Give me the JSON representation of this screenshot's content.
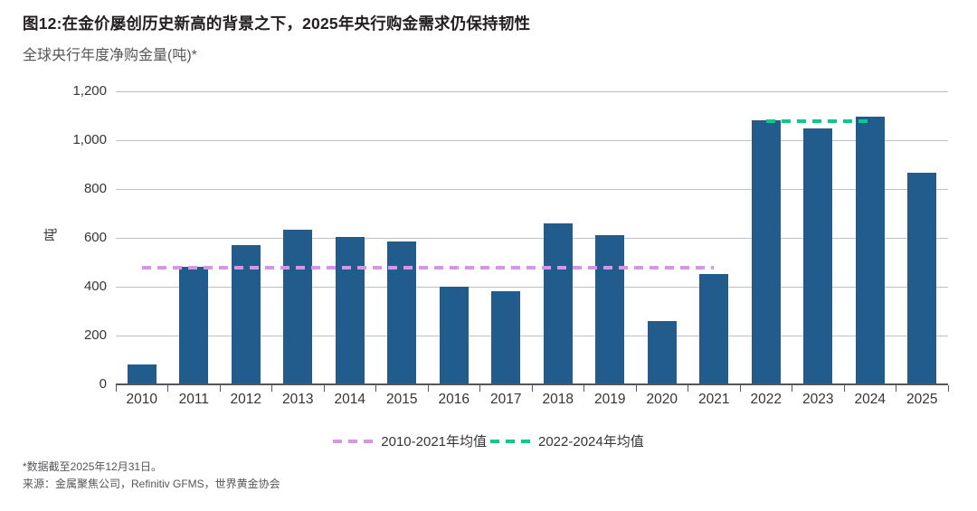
{
  "header": {
    "title": "图12:在金价屡创历史新高的背景之下，2025年央行购金需求仍保持韧性",
    "subtitle": "全球央行年度净购金量(吨)*"
  },
  "chart_data": {
    "type": "bar",
    "title": "图12:在金价屡创历史新高的背景之下，2025年央行购金需求仍保持韧性",
    "subtitle": "全球央行年度净购金量(吨)*",
    "categories": [
      "2010",
      "2011",
      "2012",
      "2013",
      "2014",
      "2015",
      "2016",
      "2017",
      "2018",
      "2019",
      "2020",
      "2021",
      "2022",
      "2023",
      "2024",
      "2025"
    ],
    "values": [
      80,
      481,
      572,
      632,
      605,
      585,
      400,
      383,
      660,
      610,
      260,
      452,
      1083,
      1050,
      1095,
      868
    ],
    "xlabel": "",
    "ylabel": "吨",
    "ylim": [
      0,
      1200
    ],
    "ytick_interval": 200,
    "ytick_labels": [
      "0",
      "200",
      "400",
      "600",
      "800",
      "1,000",
      "1,200"
    ],
    "grid": true,
    "bar_color": "#215c8c",
    "reference_lines": [
      {
        "label": "2010-2021年均值",
        "value": 477,
        "color": "#d795ea",
        "from_category": "2010",
        "to_category": "2021"
      },
      {
        "label": "2022-2024年均值",
        "value": 1076,
        "color": "#0bc98e",
        "from_category": "2022",
        "to_category": "2024"
      }
    ],
    "legend_position": "bottom"
  },
  "footer": {
    "note": "*数据截至2025年12月31日。",
    "source": "来源：金属聚焦公司，Refinitiv GFMS，世界黄金协会"
  }
}
